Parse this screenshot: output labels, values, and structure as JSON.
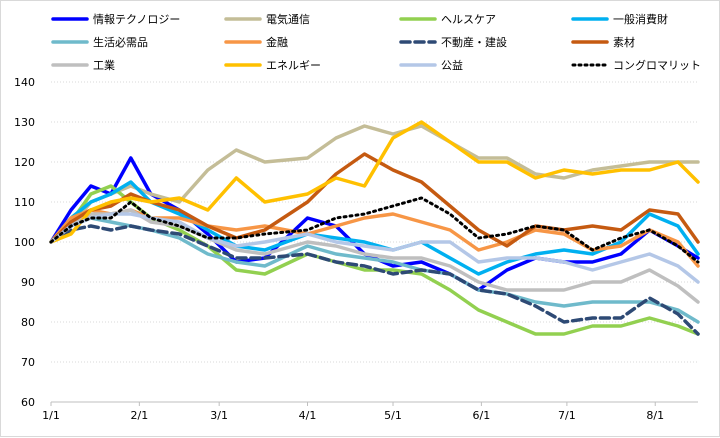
{
  "chart_data": {
    "type": "line",
    "title": "",
    "xlabel": "",
    "ylabel": "",
    "ylim": [
      60,
      140
    ],
    "yticks": [
      60,
      70,
      80,
      90,
      100,
      110,
      120,
      130,
      140
    ],
    "xlim_days": [
      0,
      227
    ],
    "xticks": [
      {
        "label": "1/1",
        "day": 0
      },
      {
        "label": "2/1",
        "day": 31
      },
      {
        "label": "3/1",
        "day": 59
      },
      {
        "label": "4/1",
        "day": 90
      },
      {
        "label": "5/1",
        "day": 120
      },
      {
        "label": "6/1",
        "day": 151
      },
      {
        "label": "7/1",
        "day": 181
      },
      {
        "label": "8/1",
        "day": 212
      }
    ],
    "grid": "horizontal-dotted",
    "legend_position": "top",
    "x_days": [
      0,
      7,
      14,
      21,
      28,
      35,
      45,
      55,
      65,
      75,
      90,
      100,
      110,
      120,
      130,
      140,
      150,
      160,
      170,
      180,
      190,
      200,
      210,
      220,
      227
    ],
    "series": [
      {
        "name": "情報テクノロジー",
        "color": "#0000FF",
        "style": "solid",
        "values": [
          100,
          108,
          114,
          112,
          121,
          112,
          108,
          102,
          95,
          96,
          106,
          104,
          97,
          94,
          95,
          92,
          88,
          93,
          96,
          95,
          95,
          97,
          103,
          99,
          96
        ]
      },
      {
        "name": "電気通信",
        "color": "#C4BD97",
        "style": "solid",
        "values": [
          100,
          104,
          110,
          112,
          114,
          112,
          110,
          118,
          123,
          120,
          121,
          126,
          129,
          127,
          129,
          125,
          121,
          121,
          117,
          116,
          118,
          119,
          120,
          120,
          120
        ]
      },
      {
        "name": "ヘルスケア",
        "color": "#92D050",
        "style": "solid",
        "values": [
          100,
          105,
          112,
          114,
          110,
          106,
          103,
          99,
          93,
          92,
          97,
          95,
          93,
          93,
          92,
          88,
          83,
          80,
          77,
          77,
          79,
          79,
          81,
          79,
          77
        ]
      },
      {
        "name": "一般消費財",
        "color": "#00B0F0",
        "style": "solid",
        "values": [
          100,
          106,
          110,
          112,
          115,
          110,
          107,
          103,
          99,
          98,
          102,
          101,
          100,
          98,
          100,
          96,
          92,
          95,
          97,
          98,
          97,
          100,
          107,
          104,
          97
        ]
      },
      {
        "name": "生活必需品",
        "color": "#6FBACB",
        "style": "solid",
        "values": [
          100,
          104,
          106,
          105,
          104,
          103,
          101,
          97,
          95,
          94,
          99,
          97,
          96,
          95,
          93,
          92,
          88,
          87,
          85,
          84,
          85,
          85,
          85,
          83,
          80
        ]
      },
      {
        "name": "金融",
        "color": "#F79646",
        "style": "solid",
        "values": [
          100,
          106,
          108,
          107,
          108,
          106,
          106,
          104,
          103,
          104,
          102,
          104,
          106,
          107,
          105,
          103,
          98,
          100,
          103,
          102,
          98,
          99,
          103,
          100,
          94
        ]
      },
      {
        "name": "不動産・建設",
        "color": "#2E4A75",
        "style": "dashed",
        "values": [
          100,
          103,
          104,
          103,
          104,
          103,
          102,
          99,
          96,
          96,
          97,
          95,
          94,
          92,
          93,
          92,
          88,
          87,
          84,
          80,
          81,
          81,
          86,
          82,
          77
        ]
      },
      {
        "name": "素材",
        "color": "#C55A11",
        "style": "solid",
        "values": [
          100,
          105,
          108,
          109,
          112,
          110,
          108,
          104,
          101,
          103,
          110,
          117,
          122,
          118,
          115,
          109,
          103,
          99,
          104,
          103,
          104,
          103,
          108,
          107,
          100
        ]
      },
      {
        "name": "工業",
        "color": "#BFBFBF",
        "style": "solid",
        "values": [
          100,
          104,
          107,
          107,
          108,
          105,
          104,
          101,
          98,
          97,
          100,
          99,
          97,
          96,
          96,
          94,
          90,
          88,
          88,
          88,
          90,
          90,
          93,
          89,
          85
        ]
      },
      {
        "name": "エネルギー",
        "color": "#FFC000",
        "style": "solid",
        "values": [
          100,
          102,
          108,
          110,
          111,
          110,
          111,
          108,
          116,
          110,
          112,
          116,
          114,
          126,
          130,
          125,
          120,
          120,
          116,
          118,
          117,
          118,
          118,
          120,
          115
        ]
      },
      {
        "name": "公益",
        "color": "#B4C7E7",
        "style": "solid",
        "values": [
          100,
          104,
          106,
          107,
          107,
          106,
          105,
          101,
          99,
          100,
          102,
          100,
          99,
          98,
          100,
          100,
          95,
          96,
          96,
          95,
          93,
          95,
          97,
          94,
          90
        ]
      },
      {
        "name": "コングロマリット",
        "color": "#000000",
        "style": "dotted",
        "values": [
          100,
          104,
          106,
          106,
          110,
          106,
          104,
          101,
          101,
          102,
          103,
          106,
          107,
          109,
          111,
          107,
          101,
          102,
          104,
          103,
          98,
          101,
          103,
          99,
          95
        ]
      }
    ]
  }
}
